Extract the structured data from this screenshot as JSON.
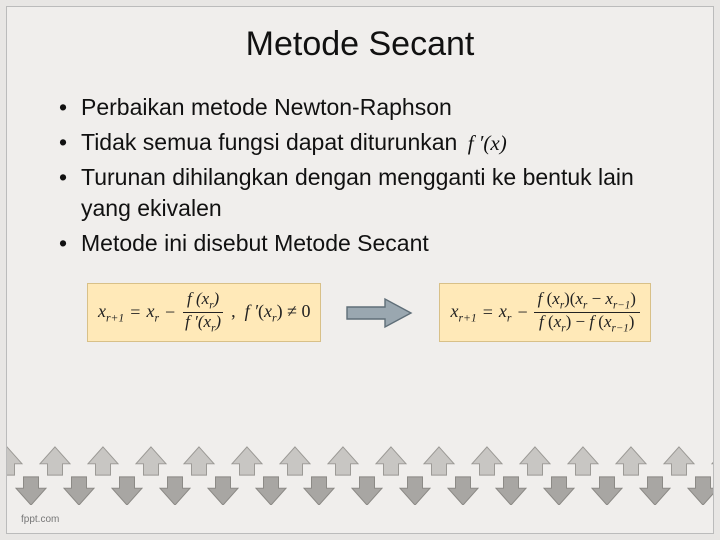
{
  "title": "Metode Secant",
  "bullets": [
    "Perbaikan metode Newton-Raphson",
    "Tidak semua fungsi dapat diturunkan",
    "Turunan dihilangkan dengan mengganti ke bentuk lain yang ekivalen",
    "Metode ini disebut Metode Secant"
  ],
  "inline_math": "f ′(x)",
  "formula_left": {
    "lhs": "x",
    "lhs_sub": "r+1",
    "eq_rhs_lead": "x",
    "eq_rhs_lead_sub": "r",
    "num": "f (x_r)",
    "den": "f ′(x_r)",
    "cond": ",  f ′(x_r) ≠ 0"
  },
  "formula_right": {
    "lhs": "x",
    "lhs_sub": "r+1",
    "eq_rhs_lead": "x",
    "eq_rhs_lead_sub": "r",
    "num": "f (x_r)(x_r − x_{r−1})",
    "den": "f (x_r) − f (x_{r−1})"
  },
  "colors": {
    "slide_bg": "#f0eeec",
    "formula_bg": "#ffe9b8",
    "formula_border": "#d8c088",
    "arrow_fill": "#9aa7b0",
    "arrow_stroke": "#5f6e78",
    "band_up_fill": "#c8c6c3",
    "band_up_stroke": "#9a9894",
    "band_down_fill": "#a8a6a3",
    "band_down_stroke": "#8a8884"
  },
  "footer": "fppt.com"
}
